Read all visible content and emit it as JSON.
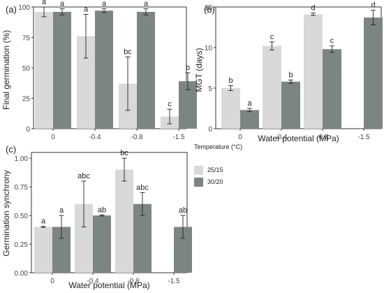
{
  "chart_data": [
    {
      "panel_label": "(a)",
      "type": "bar",
      "categories": [
        "0",
        "-0.4",
        "-0.8",
        "-1.5"
      ],
      "xlabel": "",
      "ylabel": "Final germination (%)",
      "ylim": [
        0,
        100
      ],
      "yticks": [
        "0",
        "25",
        "50",
        "75",
        "100"
      ],
      "grid": false,
      "series": [
        {
          "name": "25/15",
          "values": [
            96,
            76,
            37,
            10
          ],
          "errors": [
            4,
            18,
            22,
            6
          ],
          "letters": [
            "a",
            "a",
            "bc",
            "c"
          ]
        },
        {
          "name": "30/20",
          "values": [
            96,
            97,
            96,
            39
          ],
          "errors": [
            2.5,
            1.5,
            2.5,
            7
          ],
          "letters": [
            "a",
            "a",
            "a",
            "b"
          ]
        }
      ]
    },
    {
      "panel_label": "(b)",
      "type": "bar",
      "categories": [
        "0",
        "-0.4",
        "-0.8",
        "-1.5"
      ],
      "xlabel": "Water potential (MPa)",
      "ylabel": "MGT (days)",
      "ylim": [
        0,
        15
      ],
      "yticks": [
        "0",
        "5",
        "10",
        "15"
      ],
      "grid": false,
      "series": [
        {
          "name": "25/15",
          "values": [
            5.0,
            10.2,
            14.1,
            null
          ],
          "errors": [
            0.3,
            0.5,
            0.15,
            null
          ],
          "letters": [
            "b",
            "c",
            "d",
            ""
          ]
        },
        {
          "name": "30/20",
          "values": [
            2.3,
            5.8,
            9.8,
            13.7
          ],
          "errors": [
            0.2,
            0.2,
            0.4,
            0.9
          ],
          "letters": [
            "a",
            "b",
            "c",
            "d"
          ]
        }
      ]
    },
    {
      "panel_label": "(c)",
      "type": "bar",
      "categories": [
        "0",
        "-0.4",
        "-0.8",
        "-1.5"
      ],
      "xlabel": "Water potential (MPa)",
      "ylabel": "Germination synchrony",
      "ylim": [
        0,
        1.05
      ],
      "yticks": [
        "0.00",
        "0.25",
        "0.50",
        "0.75",
        "1.00"
      ],
      "grid": false,
      "series": [
        {
          "name": "25/15",
          "values": [
            0.4,
            0.6,
            0.9,
            null
          ],
          "errors": [
            0.005,
            0.2,
            0.1,
            null
          ],
          "letters": [
            "a",
            "abc",
            "bc",
            ""
          ]
        },
        {
          "name": "30/20",
          "values": [
            0.4,
            0.5,
            0.6,
            0.4
          ],
          "errors": [
            0.1,
            0.005,
            0.1,
            0.1
          ],
          "letters": [
            "a",
            "ab",
            "abc",
            "ab"
          ]
        }
      ]
    }
  ],
  "legend": {
    "title": "Temperature (°C)",
    "position": "right",
    "items": [
      {
        "label": "25/15",
        "color": "#d9d9d9"
      },
      {
        "label": "30/20",
        "color": "#7d8582"
      }
    ]
  }
}
